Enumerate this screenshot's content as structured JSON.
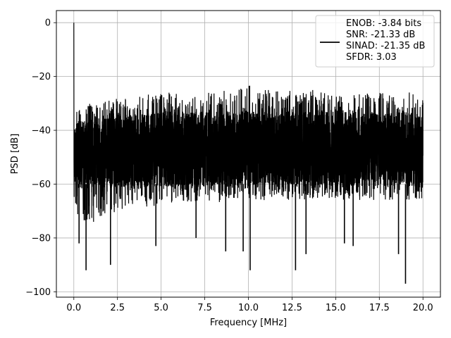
{
  "chart_data": {
    "type": "line",
    "xlabel": "Frequency [MHz]",
    "ylabel": "PSD [dB]",
    "xlim": [
      -1.0,
      21.0
    ],
    "ylim": [
      -102.0,
      4.5
    ],
    "xticks": [
      0,
      2.5,
      5,
      7.5,
      10,
      12.5,
      15,
      17.5,
      20
    ],
    "xtick_labels": [
      "0.0",
      "2.5",
      "5.0",
      "7.5",
      "10.0",
      "12.5",
      "15.0",
      "17.5",
      "20.0"
    ],
    "yticks": [
      0,
      -20,
      -40,
      -60,
      -80,
      -100
    ],
    "ytick_labels": [
      "0",
      "−20",
      "−40",
      "−60",
      "−80",
      "−100"
    ],
    "grid": true,
    "legend_position": "top-right",
    "legend_entries": [
      "ENOB: -3.84 bits",
      "SNR: -21.33 dB",
      "SINAD: -21.35 dB",
      "SFDR: 3.03"
    ],
    "series": [
      {
        "color": "#000000",
        "x": [
          0,
          0.02,
          0.05,
          0.1,
          0.15,
          0.2,
          0.3,
          0.5,
          0.7,
          0.9,
          1.2,
          1.5,
          2.0,
          2.5,
          3.0,
          3.5,
          4.0,
          5.0,
          6.0,
          7.0,
          8.0,
          9.0,
          10.0,
          11.0,
          12.0,
          13.0,
          14.0,
          15.0,
          16.0,
          17.0,
          18.0,
          19.0,
          19.5,
          20.0
        ],
        "envelope_upper": [
          0,
          -24,
          -31,
          -33,
          -32,
          -31,
          -31,
          -31,
          -31,
          -30,
          -30,
          -30,
          -29,
          -28,
          -28,
          -28,
          -27,
          -26,
          -26,
          -26,
          -25,
          -25,
          -23,
          -25,
          -25,
          -25,
          -25,
          -26,
          -26,
          -26,
          -26,
          -26,
          -25,
          -27
        ],
        "envelope_mid_high": [
          -35,
          -36,
          -37,
          -37,
          -37,
          -37,
          -37,
          -36,
          -36,
          -36,
          -35,
          -35,
          -35,
          -34,
          -34,
          -34,
          -34,
          -33,
          -33,
          -33,
          -33,
          -33,
          -33,
          -33,
          -33,
          -33,
          -33,
          -33,
          -33,
          -33,
          -33,
          -33,
          -33,
          -34
        ],
        "envelope_mid_low": [
          -60,
          -60,
          -61,
          -61,
          -61,
          -61,
          -62,
          -62,
          -62,
          -62,
          -62,
          -62,
          -62,
          -62,
          -62,
          -62,
          -62,
          -61,
          -61,
          -61,
          -61,
          -61,
          -61,
          -61,
          -61,
          -61,
          -61,
          -61,
          -61,
          -61,
          -61,
          -61,
          -61,
          -62
        ],
        "envelope_lower": [
          -57,
          -70,
          -72,
          -74,
          -76,
          -78,
          -76,
          -77,
          -76,
          -76,
          -74,
          -73,
          -72,
          -70,
          -70,
          -69,
          -69,
          -68,
          -67,
          -67,
          -67,
          -66,
          -66,
          -66,
          -66,
          -66,
          -66,
          -66,
          -66,
          -66,
          -66,
          -66,
          -66,
          -66
        ],
        "notable_dips": [
          {
            "x": 0.7,
            "y": -92
          },
          {
            "x": 0.3,
            "y": -82
          },
          {
            "x": 2.1,
            "y": -90
          },
          {
            "x": 4.7,
            "y": -83
          },
          {
            "x": 8.7,
            "y": -85
          },
          {
            "x": 10.1,
            "y": -92
          },
          {
            "x": 12.7,
            "y": -92
          },
          {
            "x": 13.3,
            "y": -86
          },
          {
            "x": 19.0,
            "y": -97
          },
          {
            "x": 18.6,
            "y": -86
          },
          {
            "x": 16.0,
            "y": -83
          },
          {
            "x": 9.7,
            "y": -85
          },
          {
            "x": 15.5,
            "y": -82
          },
          {
            "x": 7.0,
            "y": -80
          }
        ]
      }
    ]
  }
}
